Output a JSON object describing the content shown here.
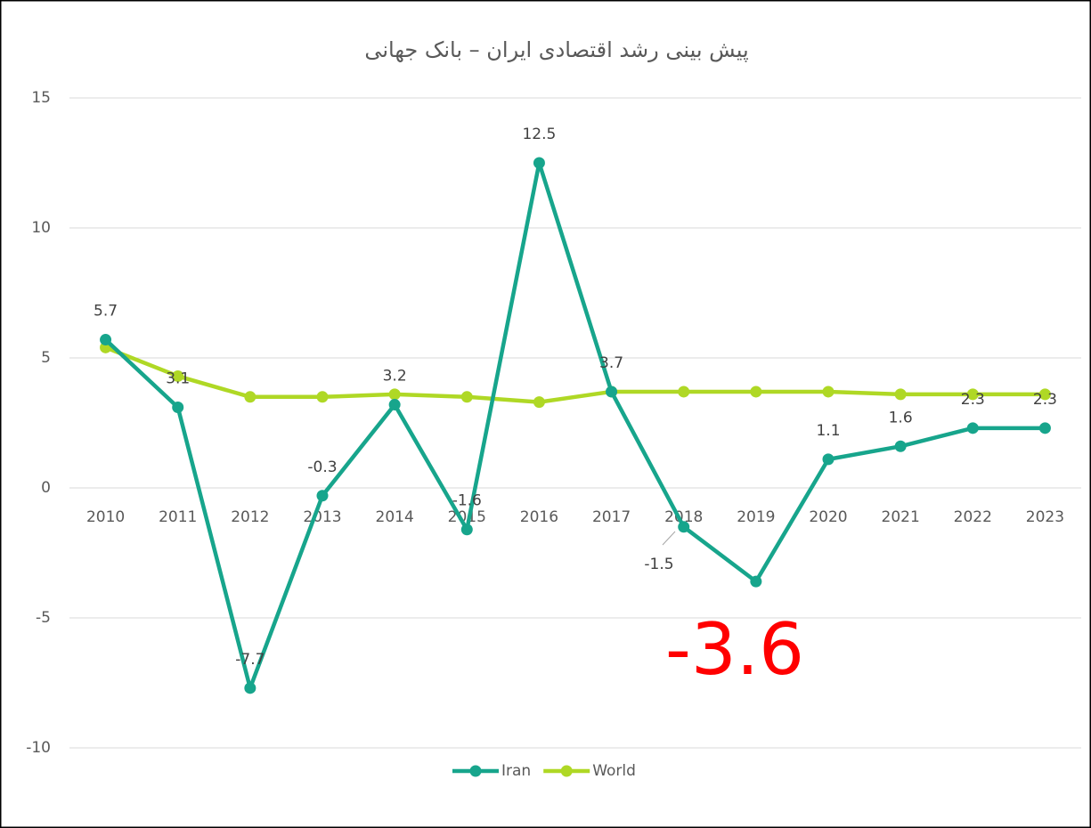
{
  "chart_data": {
    "type": "line",
    "title": "پیش بینی رشد اقتصادی ایران – بانک جهانی",
    "categories": [
      "2010",
      "2011",
      "2012",
      "2013",
      "2014",
      "2015",
      "2016",
      "2017",
      "2018",
      "2019",
      "2020",
      "2021",
      "2022",
      "2023"
    ],
    "series": [
      {
        "name": "Iran",
        "color": "#17a58c",
        "values": [
          5.7,
          3.1,
          -7.7,
          -0.3,
          3.2,
          -1.6,
          12.5,
          3.7,
          -1.5,
          -3.6,
          1.1,
          1.6,
          2.3,
          2.3
        ]
      },
      {
        "name": "World",
        "color": "#afd825",
        "values": [
          5.4,
          4.3,
          3.5,
          3.5,
          3.6,
          3.5,
          3.3,
          3.7,
          3.7,
          3.7,
          3.7,
          3.6,
          3.6,
          3.6
        ]
      }
    ],
    "ylim": [
      -10,
      15
    ],
    "yticks": [
      15,
      10,
      5,
      0,
      -5,
      -10
    ],
    "grid": true,
    "legend": "bottom"
  }
}
